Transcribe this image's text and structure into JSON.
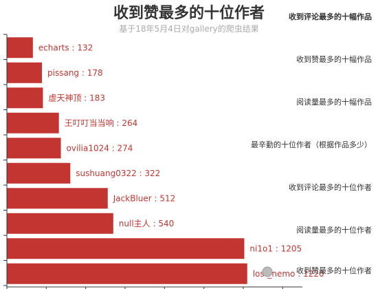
{
  "title": "收到赞最多的十位作者",
  "subtitle": "基于18年5月4日对gallery的爬虫结果",
  "accent_color": "#c23531",
  "nav_tabs": [
    {
      "label": "收到评论最多的十幅作品",
      "active": true
    },
    {
      "label": "收到赞最多的十幅作品",
      "active": false
    },
    {
      "label": "阅读量最多的十幅作品",
      "active": false
    },
    {
      "label": "最辛勤的十位作者（根据作品多少）",
      "active": false
    },
    {
      "label": "收到评论最多的十位作者",
      "active": false
    },
    {
      "label": "阅读量最多的十位作者",
      "active": false
    },
    {
      "label": "收到赞最多的十位作者",
      "active": false
    }
  ],
  "chart_data": {
    "type": "bar",
    "orientation": "horizontal",
    "categories": [
      "echarts",
      "pissang",
      "虚天神顶",
      "王叮叮当当响",
      "ovilia1024",
      "sushuang0322",
      "JackBluer",
      "null主人",
      "ni1o1",
      "lost_nemo"
    ],
    "values": [
      132,
      178,
      183,
      264,
      274,
      322,
      512,
      540,
      1205,
      1220
    ],
    "title": "收到赞最多的十位作者",
    "subtitle": "基于18年5月4日对gallery的爬虫结果",
    "bar_color": "#c23531",
    "label_format": "{name} : {value}"
  }
}
